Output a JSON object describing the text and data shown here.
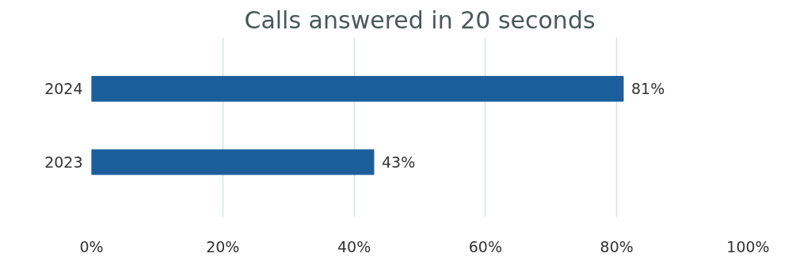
{
  "chart_data": {
    "type": "bar",
    "orientation": "horizontal",
    "title": "Calls answered in 20 seconds",
    "categories": [
      "2024",
      "2023"
    ],
    "values": [
      81,
      43
    ],
    "color": "#1b5e9c",
    "value_labels": [
      "81%",
      "43%"
    ],
    "xlim": [
      0,
      100
    ],
    "xticks": [
      {
        "value": 0,
        "label": "0%"
      },
      {
        "value": 20,
        "label": "20%"
      },
      {
        "value": 40,
        "label": "40%"
      },
      {
        "value": 60,
        "label": "60%"
      },
      {
        "value": 80,
        "label": "80%"
      },
      {
        "value": 100,
        "label": "100%"
      }
    ],
    "grid": "x"
  }
}
